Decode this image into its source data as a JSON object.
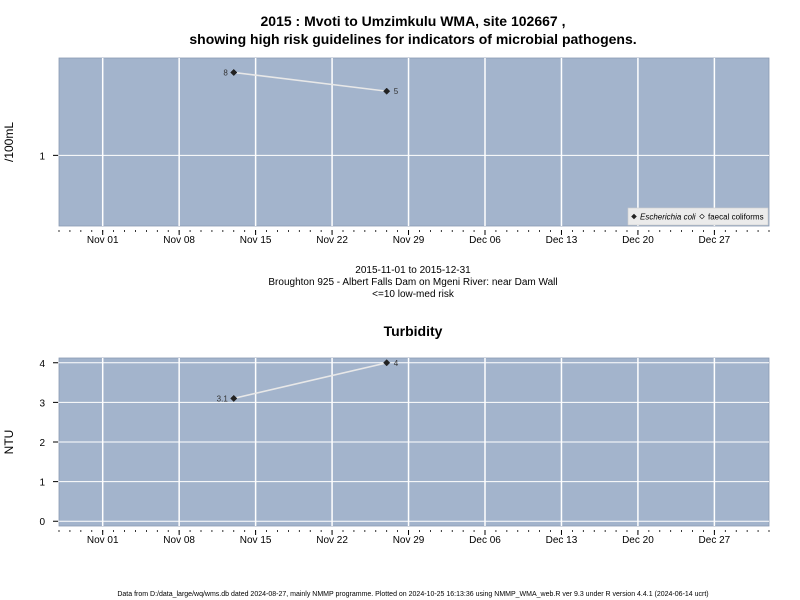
{
  "header": {
    "title_line1": "2015 : Mvoti to Umzimkulu WMA, site 102667 ,",
    "title_line2": "showing high risk guidelines for indicators of microbial pathogens."
  },
  "subtitle": {
    "date_range": "2015-11-01 to 2015-12-31",
    "site_name": "Broughton 925 - Albert Falls Dam on Mgeni River: near Dam Wall",
    "risk": "<=10 low-med risk"
  },
  "footer": {
    "text": "Data from D:/data_large/wq/wms.db dated 2024-08-27, mainly NMMP programme. Plotted on 2024-10-25 16:13:36 using NMMP_WMA_web.R ver 9.3 under R version 4.4.1 (2024-06-14 ucrt)"
  },
  "colors": {
    "panel_bg": "#a3b4cc",
    "grid": "#ffffff",
    "series_line": "#e8e8e8",
    "point": "#222222",
    "legend_bg": "#ebebeb"
  },
  "chart_data": [
    {
      "type": "line",
      "title": "",
      "ylabel": "/100mL",
      "xlabel": "",
      "y_scale": "log10",
      "ylim": [
        0.17,
        11.5
      ],
      "xlim": [
        "2015-10-28",
        "2016-01-01"
      ],
      "x_ticks": [
        "Nov 01",
        "Nov 08",
        "Nov 15",
        "Nov 22",
        "Nov 29",
        "Dec 06",
        "Dec 13",
        "Dec 20",
        "Dec 27"
      ],
      "x_tick_dates": [
        "2015-11-01",
        "2015-11-08",
        "2015-11-15",
        "2015-11-22",
        "2015-11-29",
        "2015-12-06",
        "2015-12-13",
        "2015-12-20",
        "2015-12-27"
      ],
      "y_ticks": [
        1
      ],
      "y_tick_labels": [
        "1"
      ],
      "grid": true,
      "legend_position": "bottom-right",
      "legend": [
        {
          "label": "Escherichia coli",
          "marker": "filled-diamond",
          "italic": true
        },
        {
          "label": "faecal coliforms",
          "marker": "open-diamond",
          "italic": false
        }
      ],
      "series": [
        {
          "name": "Escherichia coli",
          "x": [
            "2015-11-13",
            "2015-11-27"
          ],
          "y": [
            8,
            5
          ],
          "labels": [
            "8",
            "5"
          ]
        }
      ]
    },
    {
      "type": "line",
      "title": "Turbidity",
      "ylabel": "NTU",
      "xlabel": "",
      "y_scale": "linear",
      "ylim": [
        -0.12,
        4.12
      ],
      "xlim": [
        "2015-10-28",
        "2016-01-01"
      ],
      "x_ticks": [
        "Nov 01",
        "Nov 08",
        "Nov 15",
        "Nov 22",
        "Nov 29",
        "Dec 06",
        "Dec 13",
        "Dec 20",
        "Dec 27"
      ],
      "x_tick_dates": [
        "2015-11-01",
        "2015-11-08",
        "2015-11-15",
        "2015-11-22",
        "2015-11-29",
        "2015-12-06",
        "2015-12-13",
        "2015-12-20",
        "2015-12-27"
      ],
      "y_ticks": [
        0,
        1,
        2,
        3,
        4
      ],
      "y_tick_labels": [
        "0",
        "1",
        "2",
        "3",
        "4"
      ],
      "grid": true,
      "series": [
        {
          "x": [
            "2015-11-13",
            "2015-11-27"
          ],
          "y": [
            3.1,
            4
          ],
          "labels": [
            "3.1",
            "4"
          ]
        }
      ]
    }
  ]
}
